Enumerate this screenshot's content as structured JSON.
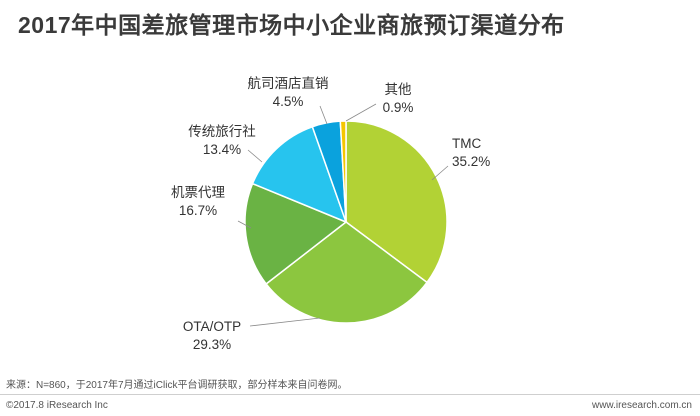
{
  "chart_data": {
    "type": "pie",
    "title": "2017年中国差旅管理市场中小企业商旅预订渠道分布",
    "slices": [
      {
        "label": "TMC",
        "value": 35.2,
        "value_label": "35.2%",
        "color": "#b2d235"
      },
      {
        "label": "OTA/OTP",
        "value": 29.3,
        "value_label": "29.3%",
        "color": "#8cc63f"
      },
      {
        "label": "机票代理",
        "value": 16.7,
        "value_label": "16.7%",
        "color": "#6ab344"
      },
      {
        "label": "传统旅行社",
        "value": 13.4,
        "value_label": "13.4%",
        "color": "#27c4ee"
      },
      {
        "label": "航司酒店直销",
        "value": 4.5,
        "value_label": "4.5%",
        "color": "#0aa2dd"
      },
      {
        "label": "其他",
        "value": 0.9,
        "value_label": "0.9%",
        "color": "#f5c600"
      }
    ]
  },
  "footer": {
    "source": "来源：N=860，于2017年7月通过iClick平台调研获取，部分样本来自问卷网。",
    "copyright": "©2017.8 iResearch Inc",
    "site": "www.iresearch.com.cn"
  }
}
